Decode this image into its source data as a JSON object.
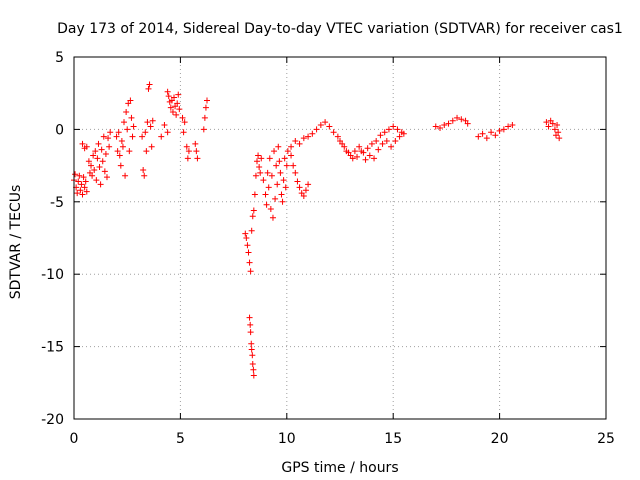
{
  "chart_data": {
    "type": "scatter",
    "title": "Day 173 of 2014, Sidereal Day-to-day VTEC variation (SDTVAR) for receiver cas1",
    "xlabel": "GPS time / hours",
    "ylabel": "SDTVAR / TECUs",
    "xlim": [
      0,
      25
    ],
    "ylim": [
      -20,
      5
    ],
    "x_ticks": [
      0,
      5,
      10,
      15,
      20,
      25
    ],
    "y_ticks": [
      5,
      0,
      -5,
      -10,
      -15,
      -20
    ],
    "grid": true,
    "marker": "+",
    "marker_color": "#ff0000",
    "series": [
      {
        "name": "SDTVAR",
        "points": [
          [
            0.0,
            -3.5
          ],
          [
            0.05,
            -3.1
          ],
          [
            0.1,
            -4.0
          ],
          [
            0.15,
            -4.4
          ],
          [
            0.2,
            -3.6
          ],
          [
            0.25,
            -3.2
          ],
          [
            0.3,
            -4.2
          ],
          [
            0.35,
            -3.8
          ],
          [
            0.4,
            -4.5
          ],
          [
            0.45,
            -3.3
          ],
          [
            0.5,
            -4.0
          ],
          [
            0.55,
            -3.6
          ],
          [
            0.6,
            -4.3
          ],
          [
            0.4,
            -1.0
          ],
          [
            0.5,
            -1.3
          ],
          [
            0.6,
            -1.2
          ],
          [
            0.7,
            -2.2
          ],
          [
            0.75,
            -3.0
          ],
          [
            0.8,
            -2.5
          ],
          [
            0.85,
            -3.2
          ],
          [
            0.9,
            -1.8
          ],
          [
            0.95,
            -2.8
          ],
          [
            1.0,
            -1.5
          ],
          [
            1.05,
            -3.5
          ],
          [
            1.1,
            -2.0
          ],
          [
            1.15,
            -1.0
          ],
          [
            1.2,
            -2.6
          ],
          [
            1.25,
            -3.8
          ],
          [
            1.3,
            -1.4
          ],
          [
            1.35,
            -2.2
          ],
          [
            1.4,
            -0.5
          ],
          [
            1.45,
            -2.9
          ],
          [
            1.5,
            -1.7
          ],
          [
            1.55,
            -3.3
          ],
          [
            1.6,
            -0.6
          ],
          [
            1.65,
            -1.2
          ],
          [
            1.7,
            -0.2
          ],
          [
            2.0,
            -0.5
          ],
          [
            2.05,
            -1.5
          ],
          [
            2.1,
            -0.2
          ],
          [
            2.15,
            -1.8
          ],
          [
            2.2,
            -2.5
          ],
          [
            2.25,
            -0.8
          ],
          [
            2.3,
            -1.2
          ],
          [
            2.35,
            0.5
          ],
          [
            2.4,
            -3.2
          ],
          [
            2.45,
            1.2
          ],
          [
            2.5,
            0.0
          ],
          [
            2.55,
            1.8
          ],
          [
            2.6,
            -1.5
          ],
          [
            2.65,
            2.0
          ],
          [
            2.7,
            0.8
          ],
          [
            2.75,
            -0.5
          ],
          [
            2.8,
            0.2
          ],
          [
            3.2,
            -0.5
          ],
          [
            3.25,
            -2.8
          ],
          [
            3.3,
            -3.2
          ],
          [
            3.35,
            -0.2
          ],
          [
            3.4,
            -1.5
          ],
          [
            3.45,
            0.5
          ],
          [
            3.5,
            2.8
          ],
          [
            3.55,
            3.1
          ],
          [
            3.6,
            0.2
          ],
          [
            3.65,
            -1.2
          ],
          [
            3.7,
            0.6
          ],
          [
            4.1,
            -0.5
          ],
          [
            4.25,
            0.3
          ],
          [
            4.4,
            -0.2
          ],
          [
            4.4,
            2.6
          ],
          [
            4.45,
            2.3
          ],
          [
            4.5,
            1.9
          ],
          [
            4.55,
            1.5
          ],
          [
            4.6,
            2.0
          ],
          [
            4.65,
            1.2
          ],
          [
            4.7,
            2.2
          ],
          [
            4.75,
            1.6
          ],
          [
            4.8,
            1.0
          ],
          [
            4.85,
            1.8
          ],
          [
            4.9,
            2.4
          ],
          [
            4.95,
            1.4
          ],
          [
            5.1,
            0.8
          ],
          [
            5.15,
            -0.2
          ],
          [
            5.2,
            0.5
          ],
          [
            5.3,
            -1.2
          ],
          [
            5.35,
            -2.0
          ],
          [
            5.4,
            -1.5
          ],
          [
            5.7,
            -1.0
          ],
          [
            5.75,
            -1.5
          ],
          [
            5.8,
            -2.0
          ],
          [
            6.1,
            0.0
          ],
          [
            6.15,
            0.8
          ],
          [
            6.2,
            1.5
          ],
          [
            6.25,
            2.0
          ],
          [
            8.05,
            -7.2
          ],
          [
            8.1,
            -7.5
          ],
          [
            8.15,
            -8.0
          ],
          [
            8.2,
            -8.5
          ],
          [
            8.25,
            -9.2
          ],
          [
            8.3,
            -9.8
          ],
          [
            8.35,
            -7.0
          ],
          [
            8.4,
            -6.0
          ],
          [
            8.45,
            -5.6
          ],
          [
            8.5,
            -4.5
          ],
          [
            8.55,
            -3.2
          ],
          [
            8.6,
            -2.2
          ],
          [
            8.65,
            -1.8
          ],
          [
            8.7,
            -2.6
          ],
          [
            8.75,
            -3.0
          ],
          [
            8.8,
            -2.0
          ],
          [
            8.25,
            -13.0
          ],
          [
            8.28,
            -13.5
          ],
          [
            8.3,
            -14.0
          ],
          [
            8.33,
            -14.8
          ],
          [
            8.35,
            -15.2
          ],
          [
            8.38,
            -15.6
          ],
          [
            8.4,
            -16.2
          ],
          [
            8.43,
            -16.6
          ],
          [
            8.45,
            -17.0
          ],
          [
            8.9,
            -3.5
          ],
          [
            9.0,
            -4.5
          ],
          [
            9.05,
            -5.2
          ],
          [
            9.1,
            -3.0
          ],
          [
            9.15,
            -4.0
          ],
          [
            9.2,
            -2.0
          ],
          [
            9.25,
            -5.5
          ],
          [
            9.3,
            -3.2
          ],
          [
            9.35,
            -6.1
          ],
          [
            9.4,
            -1.5
          ],
          [
            9.45,
            -4.8
          ],
          [
            9.5,
            -2.5
          ],
          [
            9.55,
            -3.8
          ],
          [
            9.6,
            -1.2
          ],
          [
            9.65,
            -2.2
          ],
          [
            9.7,
            -3.0
          ],
          [
            9.75,
            -4.5
          ],
          [
            9.8,
            -5.0
          ],
          [
            9.85,
            -3.5
          ],
          [
            9.9,
            -2.0
          ],
          [
            9.95,
            -4.0
          ],
          [
            10.0,
            -2.5
          ],
          [
            10.05,
            -1.5
          ],
          [
            10.2,
            -1.8
          ],
          [
            10.3,
            -2.5
          ],
          [
            10.4,
            -3.0
          ],
          [
            10.5,
            -3.6
          ],
          [
            10.6,
            -4.0
          ],
          [
            10.7,
            -4.4
          ],
          [
            10.8,
            -4.6
          ],
          [
            10.9,
            -4.2
          ],
          [
            11.0,
            -3.8
          ],
          [
            10.2,
            -1.2
          ],
          [
            10.4,
            -0.8
          ],
          [
            10.6,
            -1.0
          ],
          [
            10.8,
            -0.6
          ],
          [
            11.0,
            -0.5
          ],
          [
            11.2,
            -0.3
          ],
          [
            11.4,
            0.0
          ],
          [
            11.6,
            0.3
          ],
          [
            11.8,
            0.5
          ],
          [
            12.0,
            0.2
          ],
          [
            12.2,
            -0.2
          ],
          [
            12.4,
            -0.5
          ],
          [
            12.6,
            -1.0
          ],
          [
            12.8,
            -1.5
          ],
          [
            13.0,
            -1.8
          ],
          [
            13.2,
            -1.5
          ],
          [
            13.4,
            -1.2
          ],
          [
            13.6,
            -1.6
          ],
          [
            13.8,
            -1.3
          ],
          [
            14.0,
            -1.0
          ],
          [
            14.2,
            -0.8
          ],
          [
            14.4,
            -0.4
          ],
          [
            14.6,
            -0.2
          ],
          [
            14.8,
            0.0
          ],
          [
            15.0,
            0.2
          ],
          [
            15.2,
            0.0
          ],
          [
            15.4,
            -0.2
          ],
          [
            12.5,
            -0.8
          ],
          [
            12.7,
            -1.2
          ],
          [
            12.9,
            -1.6
          ],
          [
            13.1,
            -2.0
          ],
          [
            13.3,
            -1.9
          ],
          [
            13.5,
            -1.5
          ],
          [
            13.7,
            -2.1
          ],
          [
            13.9,
            -1.8
          ],
          [
            14.1,
            -2.0
          ],
          [
            14.3,
            -1.4
          ],
          [
            14.5,
            -1.0
          ],
          [
            14.7,
            -0.8
          ],
          [
            14.9,
            -1.2
          ],
          [
            15.1,
            -0.8
          ],
          [
            15.3,
            -0.5
          ],
          [
            15.5,
            -0.3
          ],
          [
            17.0,
            0.2
          ],
          [
            17.2,
            0.1
          ],
          [
            17.4,
            0.3
          ],
          [
            17.6,
            0.4
          ],
          [
            17.8,
            0.6
          ],
          [
            18.0,
            0.8
          ],
          [
            18.2,
            0.7
          ],
          [
            18.4,
            0.6
          ],
          [
            18.5,
            0.4
          ],
          [
            19.0,
            -0.5
          ],
          [
            19.2,
            -0.3
          ],
          [
            19.4,
            -0.6
          ],
          [
            19.6,
            -0.2
          ],
          [
            19.8,
            -0.4
          ],
          [
            20.0,
            -0.1
          ],
          [
            20.2,
            0.0
          ],
          [
            20.4,
            0.2
          ],
          [
            20.6,
            0.3
          ],
          [
            22.2,
            0.5
          ],
          [
            22.3,
            0.2
          ],
          [
            22.4,
            0.6
          ],
          [
            22.5,
            0.4
          ],
          [
            22.6,
            0.0
          ],
          [
            22.65,
            -0.4
          ],
          [
            22.7,
            0.3
          ],
          [
            22.75,
            -0.2
          ],
          [
            22.8,
            -0.6
          ]
        ]
      }
    ]
  }
}
